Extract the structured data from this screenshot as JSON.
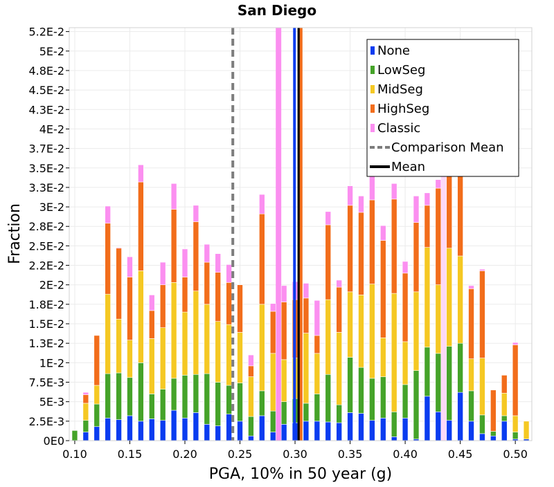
{
  "chart_data": {
    "type": "bar",
    "stacked": true,
    "title": "San Diego",
    "xlabel": "PGA, 10% in 50 year (g)",
    "ylabel": "Fraction",
    "xlim": [
      0.095,
      0.515
    ],
    "ylim": [
      0,
      0.053
    ],
    "grid": true,
    "legend_position": "top-right",
    "x_ticks": [
      0.1,
      0.15,
      0.2,
      0.25,
      0.3,
      0.35,
      0.4,
      0.45,
      0.5
    ],
    "x_tick_labels": [
      "0.10",
      "0.15",
      "0.20",
      "0.25",
      "0.30",
      "0.35",
      "0.40",
      "0.45",
      "0.50"
    ],
    "y_ticks": [
      0,
      0.0025,
      0.005,
      0.0075,
      0.01,
      0.0125,
      0.015,
      0.0175,
      0.02,
      0.0225,
      0.025,
      0.0275,
      0.03,
      0.0325,
      0.035,
      0.0375,
      0.04,
      0.0425,
      0.045,
      0.0475,
      0.05,
      0.0525
    ],
    "y_tick_labels": [
      "0E0",
      "2.5E-3",
      "5E-3",
      "7.5E-3",
      "1E-2",
      "1.3E-2",
      "1.5E-2",
      "1.8E-2",
      "2E-2",
      "2.2E-2",
      "2.5E-2",
      "2.8E-2",
      "3E-2",
      "3.3E-2",
      "3.5E-2",
      "3.7E-2",
      "4E-2",
      "4.3E-2",
      "4.5E-2",
      "4.8E-2",
      "5E-2",
      "5.2E-2"
    ],
    "bin_centers": [
      0.1,
      0.105,
      0.11,
      0.115,
      0.12,
      0.125,
      0.13,
      0.135,
      0.14,
      0.145,
      0.15,
      0.155,
      0.16,
      0.165,
      0.17,
      0.175,
      0.18,
      0.185,
      0.19,
      0.195,
      0.2,
      0.205,
      0.21,
      0.215,
      0.22,
      0.225,
      0.23,
      0.235,
      0.24,
      0.245,
      0.25,
      0.255,
      0.26,
      0.265,
      0.27,
      0.275,
      0.28,
      0.285,
      0.29,
      0.295,
      0.3,
      0.305,
      0.31,
      0.315,
      0.32,
      0.325,
      0.33,
      0.335,
      0.34,
      0.345,
      0.35,
      0.355,
      0.36,
      0.365,
      0.37,
      0.375,
      0.38,
      0.385,
      0.39,
      0.395,
      0.4,
      0.405,
      0.41,
      0.415,
      0.42,
      0.425,
      0.43,
      0.435,
      0.44,
      0.445,
      0.45,
      0.455,
      0.46,
      0.465,
      0.47,
      0.475,
      0.48,
      0.485,
      0.49,
      0.495,
      0.5,
      0.505,
      0.51
    ],
    "series": [
      {
        "name": "None",
        "color": "#0a3cf0",
        "values": [
          0,
          0,
          0.0011,
          0,
          0.0018,
          0,
          0.0029,
          0,
          0.0027,
          0,
          0.0032,
          0,
          0.0025,
          0,
          0.0028,
          0,
          0.0026,
          0,
          0.0039,
          0,
          0.0029,
          0,
          0.0036,
          0,
          0.0021,
          0,
          0.0019,
          0,
          0.0034,
          0,
          0.0025,
          0,
          0.0006,
          0,
          0.0032,
          0,
          0.0011,
          0,
          0.0021,
          0,
          0.0023,
          0,
          0.0025,
          0,
          0.0025,
          0,
          0.0024,
          0,
          0.0023,
          0,
          0.0036,
          0,
          0.0035,
          0,
          0.0026,
          0,
          0.0029,
          0,
          0.0005,
          0,
          0.0029,
          0,
          0.0002,
          0,
          0.0057,
          0,
          0.0037,
          0,
          0.0026,
          0,
          0.0062,
          0,
          0.0025,
          0,
          0.0009,
          0,
          0.0006,
          0,
          0.0025,
          0,
          0.0002,
          0,
          0.0002,
          0,
          0.0004
        ]
      },
      {
        "name": "LowSeg",
        "color": "#45a329",
        "values": [
          0.0013,
          0,
          0.0015,
          0,
          0.0029,
          0,
          0.0057,
          0,
          0.006,
          0,
          0.0049,
          0,
          0.0075,
          0,
          0.0032,
          0,
          0.004,
          0,
          0.0041,
          0,
          0.0055,
          0,
          0.0049,
          0,
          0.0065,
          0,
          0.0056,
          0,
          0.0037,
          0,
          0.0049,
          0,
          0.0025,
          0,
          0.0032,
          0,
          0.0027,
          0,
          0.0029,
          0,
          0.0031,
          0,
          0.0023,
          0,
          0.0035,
          0,
          0.0061,
          0,
          0.0023,
          0,
          0.0071,
          0,
          0.0059,
          0,
          0.0054,
          0,
          0.0053,
          0,
          0.0032,
          0,
          0.0043,
          0,
          0.0088,
          0,
          0.0063,
          0,
          0.0075,
          0,
          0.0095,
          0,
          0.0063,
          0,
          0.0039,
          0,
          0.0024,
          0,
          0.0006,
          0,
          0.0007,
          0,
          0.0009,
          0,
          0
        ]
      },
      {
        "name": "MidSeg",
        "color": "#f5c823",
        "values": [
          0,
          0,
          0.0022,
          0,
          0.0024,
          0,
          0.0102,
          0,
          0.0069,
          0,
          0.0048,
          0,
          0.0118,
          0,
          0.0071,
          0,
          0.0079,
          0,
          0.0123,
          0,
          0.0081,
          0,
          0.0107,
          0,
          0.0089,
          0,
          0.0078,
          0,
          0.0078,
          0,
          0.0065,
          0,
          0.0051,
          0,
          0.0111,
          0,
          0.0074,
          0,
          0.0054,
          0,
          0.0052,
          0,
          0.009,
          0,
          0.0052,
          0,
          0.0096,
          0,
          0.0093,
          0,
          0.0084,
          0,
          0.0093,
          0,
          0.0121,
          0,
          0.005,
          0,
          0.0152,
          0,
          0.0055,
          0,
          0.0101,
          0,
          0.0128,
          0,
          0.0088,
          0,
          0.0126,
          0,
          0.0112,
          0,
          0.0041,
          0,
          0.0073,
          0,
          0,
          0,
          0.0029,
          0,
          0.0021,
          0,
          0.0023
        ]
      },
      {
        "name": "HighSeg",
        "color": "#f26d1b",
        "values": [
          0,
          0,
          0.0011,
          0,
          0.0064,
          0,
          0.0091,
          0,
          0.0091,
          0,
          0.0081,
          0,
          0.0114,
          0,
          0.0036,
          0,
          0.0055,
          0,
          0.0094,
          0,
          0.0045,
          0,
          0.0089,
          0,
          0.0054,
          0,
          0.0063,
          0,
          0.0054,
          0,
          0.0061,
          0,
          0.0014,
          0,
          0.0116,
          0,
          0.0054,
          0,
          0.0074,
          0,
          0.0075,
          0,
          0.0045,
          0,
          0.0023,
          0,
          0.0096,
          0,
          0.0058,
          0,
          0.0111,
          0,
          0.0106,
          0,
          0.0108,
          0,
          0.0125,
          0,
          0.0121,
          0,
          0.0088,
          0,
          0.0089,
          0,
          0.0054,
          0,
          0.0124,
          0,
          0.0126,
          0,
          0.0133,
          0,
          0.009,
          0,
          0.0112,
          0,
          0.0053,
          0,
          0.0023,
          0,
          0.0091,
          0,
          0,
          0,
          0.0002,
          0,
          0.0021
        ]
      },
      {
        "name": "Classic",
        "color": "#fb8ff0",
        "values": [
          0,
          0,
          0.0003,
          0,
          0,
          0,
          0.0022,
          0,
          0.0001,
          0,
          0.0026,
          0,
          0.0022,
          0,
          0.002,
          0,
          0.0029,
          0,
          0.0033,
          0,
          0.0036,
          0,
          0.0021,
          0,
          0.0023,
          0,
          0.0024,
          0,
          0.0023,
          0,
          0,
          0,
          0.0014,
          0,
          0.0025,
          0,
          0.001,
          0,
          0.0021,
          0,
          0.0023,
          0,
          0.0019,
          0,
          0.0045,
          0,
          0.0017,
          0,
          0.0009,
          0,
          0.0025,
          0,
          0.0021,
          0,
          0.0049,
          0,
          0.0019,
          0,
          0.002,
          0,
          0.0015,
          0,
          0.0034,
          0,
          0.0016,
          0,
          0.0011,
          0,
          0.0012,
          0,
          0.0012,
          0,
          0.0004,
          0,
          0.0002,
          0,
          0,
          0,
          0,
          0,
          0.0003,
          0,
          0,
          0,
          0
        ]
      }
    ],
    "background_bars": [
      {
        "x": 0.285,
        "value": 0.053,
        "color": "#fb8ff0"
      },
      {
        "x": 0.435,
        "value": 0.0395,
        "color": "#fdd9f8"
      },
      {
        "x": 0.43,
        "value": 0.0255,
        "color": "#ffd3b0"
      }
    ],
    "reference_lines": [
      {
        "name": "Comparison Mean",
        "x": 0.2435,
        "color": "#7d7d7d",
        "style": "dashed"
      },
      {
        "name": "Mean",
        "x": 0.3035,
        "color": "#000000",
        "style": "solid"
      },
      {
        "x": 0.2995,
        "color": "#0a3cf0",
        "style": "solid"
      },
      {
        "x": 0.3055,
        "color": "#f26d1b",
        "style": "solid"
      }
    ],
    "legend": [
      {
        "label": "None",
        "kind": "box",
        "color": "#0a3cf0"
      },
      {
        "label": "LowSeg",
        "kind": "box",
        "color": "#45a329"
      },
      {
        "label": "MidSeg",
        "kind": "box",
        "color": "#f5c823"
      },
      {
        "label": "HighSeg",
        "kind": "box",
        "color": "#f26d1b"
      },
      {
        "label": "Classic",
        "kind": "box",
        "color": "#fb8ff0"
      },
      {
        "label": "Comparison Mean",
        "kind": "dashed",
        "color": "#7d7d7d"
      },
      {
        "label": "Mean",
        "kind": "line",
        "color": "#000000"
      }
    ]
  }
}
